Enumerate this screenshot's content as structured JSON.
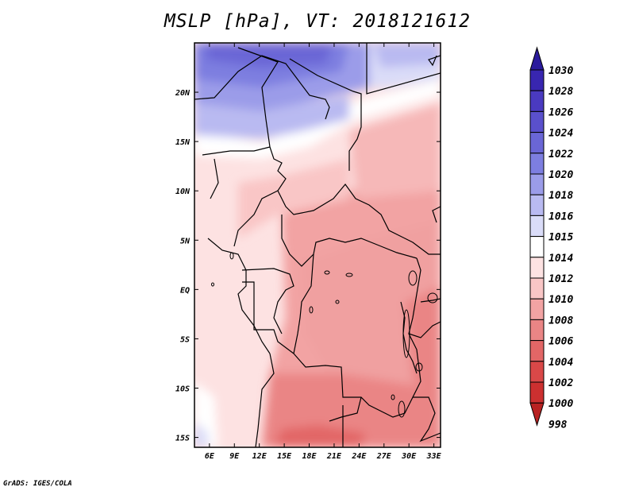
{
  "title": "MSLP [hPa], VT: 2018121612",
  "credit": "GrADS: IGES/COLA",
  "map": {
    "variable": "MSLP",
    "units": "hPa",
    "valid_time": "2018121612",
    "lon_range": [
      4.2,
      33.8
    ],
    "lat_range": [
      -16,
      25
    ],
    "lon_ticks": [
      "6E",
      "9E",
      "12E",
      "15E",
      "18E",
      "21E",
      "24E",
      "27E",
      "30E",
      "33E"
    ],
    "lon_values": [
      6,
      9,
      12,
      15,
      18,
      21,
      24,
      27,
      30,
      33
    ],
    "lat_ticks": [
      "20N",
      "15N",
      "10N",
      "5N",
      "EQ",
      "5S",
      "10S",
      "15S"
    ],
    "lat_values": [
      20,
      15,
      10,
      5,
      0,
      -5,
      -10,
      -15
    ]
  },
  "colorbar": {
    "labels": [
      "1030",
      "1028",
      "1026",
      "1024",
      "1022",
      "1020",
      "1018",
      "1016",
      "1015",
      "1014",
      "1012",
      "1010",
      "1008",
      "1006",
      "1004",
      "1002",
      "1000",
      "998"
    ],
    "colors": [
      "#2a1a9c",
      "#3826b0",
      "#4a3ac0",
      "#5a50cc",
      "#6a66d6",
      "#7d7ee0",
      "#9b9ce9",
      "#b9baf1",
      "#dadcf8",
      "#ffffff",
      "#fde2e2",
      "#f9c6c6",
      "#f2a3a3",
      "#ea8585",
      "#e26666",
      "#d94848",
      "#cc3030",
      "#b82222"
    ]
  }
}
